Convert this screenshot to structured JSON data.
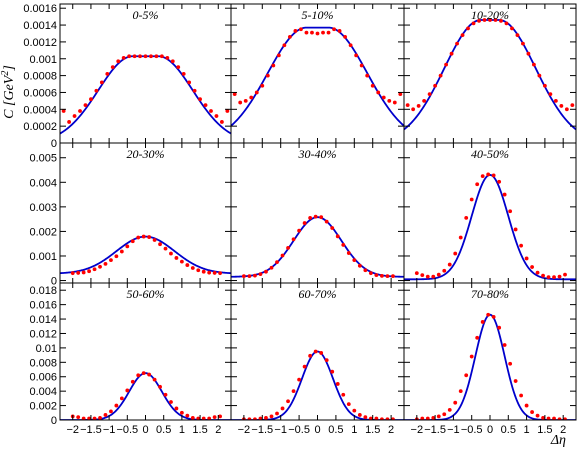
{
  "chart_data": {
    "type": "scatter",
    "ylabel": "C [GeV",
    "ylabel_sup": "2",
    "ylabel_close": "]",
    "xlabel": "Δη",
    "colors": {
      "data": "#ff0000",
      "model": "#0000cc",
      "frame": "#000000"
    },
    "xlim": [
      -2.35,
      2.35
    ],
    "x_ticks": [
      -2,
      -1.5,
      -1,
      -0.5,
      0,
      0.5,
      1,
      1.5,
      2
    ],
    "x_tick_labels": [
      "−2",
      "−1.5",
      "−1",
      "−0.5",
      "0",
      "0.5",
      "1",
      "1.5",
      "2"
    ],
    "rows": [
      {
        "ylim": [
          0,
          0.00165
        ],
        "y_ticks": [
          0,
          0.0002,
          0.0004,
          0.0006,
          0.0008,
          0.001,
          0.0012,
          0.0014,
          0.0016
        ],
        "y_tick_labels": [
          "0",
          "0.0002",
          "0.0004",
          "0.0006",
          "0.0008",
          "0.001",
          "0.0012",
          "0.0014",
          "0.0016"
        ]
      },
      {
        "ylim": [
          -0.0001,
          0.0056
        ],
        "y_ticks": [
          0,
          0.001,
          0.002,
          0.003,
          0.004,
          0.005
        ],
        "y_tick_labels": [
          "0",
          "0.001",
          "0.002",
          "0.003",
          "0.004",
          "0.005"
        ]
      },
      {
        "ylim": [
          0,
          0.019
        ],
        "y_ticks": [
          0,
          0.002,
          0.004,
          0.006,
          0.008,
          0.01,
          0.012,
          0.014,
          0.016,
          0.018
        ],
        "y_tick_labels": [
          "0",
          "0.002",
          "0.004",
          "0.006",
          "0.008",
          "0.01",
          "0.012",
          "0.014",
          "0.016",
          "0.018"
        ]
      }
    ],
    "panels": [
      {
        "label": "0-5%",
        "row": 0,
        "col": 0,
        "base": 0.0,
        "amp": 0.00103,
        "width": 0.95,
        "flat": 0.35,
        "data_x": [
          -2.25,
          -2.1,
          -1.95,
          -1.8,
          -1.65,
          -1.5,
          -1.35,
          -1.2,
          -1.05,
          -0.9,
          -0.75,
          -0.6,
          -0.45,
          -0.3,
          -0.15,
          0,
          0.15,
          0.3,
          0.45,
          0.6,
          0.75,
          0.9,
          1.05,
          1.2,
          1.35,
          1.5,
          1.65,
          1.8,
          1.95,
          2.1,
          2.25
        ],
        "data_y": [
          0.00038,
          0.00025,
          0.00032,
          0.00038,
          0.00045,
          0.00052,
          0.00062,
          0.00072,
          0.00082,
          0.0009,
          0.00097,
          0.00101,
          0.00103,
          0.00103,
          0.00103,
          0.00103,
          0.00103,
          0.00103,
          0.00103,
          0.00101,
          0.00097,
          0.0009,
          0.00082,
          0.00072,
          0.00062,
          0.00052,
          0.00045,
          0.00038,
          0.00032,
          0.00025,
          0.00038
        ]
      },
      {
        "label": "5-10%",
        "row": 0,
        "col": 1,
        "base": 0.0,
        "amp": 0.00137,
        "width": 1.05,
        "flat": 0.3,
        "data_x": [
          -2.25,
          -2.1,
          -1.95,
          -1.8,
          -1.65,
          -1.5,
          -1.35,
          -1.2,
          -1.05,
          -0.9,
          -0.75,
          -0.6,
          -0.45,
          -0.3,
          -0.15,
          0,
          0.15,
          0.3,
          0.45,
          0.6,
          0.75,
          0.9,
          1.05,
          1.2,
          1.35,
          1.5,
          1.65,
          1.8,
          1.95,
          2.1,
          2.25
        ],
        "data_y": [
          0.00058,
          0.00048,
          0.0005,
          0.00054,
          0.0006,
          0.00068,
          0.0008,
          0.00092,
          0.00104,
          0.00116,
          0.00126,
          0.00133,
          0.00135,
          0.00131,
          0.00131,
          0.0013,
          0.00131,
          0.00131,
          0.00135,
          0.00133,
          0.00126,
          0.00116,
          0.00104,
          0.00092,
          0.0008,
          0.00068,
          0.0006,
          0.00054,
          0.0005,
          0.00048,
          0.00058
        ]
      },
      {
        "label": "10-20%",
        "row": 0,
        "col": 2,
        "base": 0.0,
        "amp": 0.00146,
        "width": 1.0,
        "flat": 0.25,
        "data_x": [
          -2.25,
          -2.1,
          -1.95,
          -1.8,
          -1.65,
          -1.5,
          -1.35,
          -1.2,
          -1.05,
          -0.9,
          -0.75,
          -0.6,
          -0.45,
          -0.3,
          -0.15,
          0,
          0.15,
          0.3,
          0.45,
          0.6,
          0.75,
          0.9,
          1.05,
          1.2,
          1.35,
          1.5,
          1.65,
          1.8,
          1.95,
          2.1,
          2.25
        ],
        "data_y": [
          0.00045,
          0.0004,
          0.00044,
          0.0005,
          0.00058,
          0.00068,
          0.0008,
          0.00093,
          0.00106,
          0.00118,
          0.00128,
          0.00136,
          0.00142,
          0.00145,
          0.00146,
          0.00146,
          0.00146,
          0.00145,
          0.00142,
          0.00136,
          0.00128,
          0.00118,
          0.00106,
          0.00093,
          0.0008,
          0.00068,
          0.00058,
          0.0005,
          0.00044,
          0.0004,
          0.00045
        ]
      },
      {
        "label": "20-30%",
        "row": 1,
        "col": 0,
        "base": 0.00028,
        "amp": 0.00151,
        "width": 0.8,
        "flat": 0.0,
        "data_x": [
          -2.0,
          -1.85,
          -1.7,
          -1.55,
          -1.4,
          -1.25,
          -1.1,
          -0.95,
          -0.8,
          -0.65,
          -0.5,
          -0.35,
          -0.2,
          -0.05,
          0.1,
          0.25,
          0.4,
          0.55,
          0.7,
          0.85,
          1.0,
          1.15,
          1.3,
          1.45,
          1.6,
          1.75,
          1.9,
          2.05
        ],
        "data_y": [
          0.0003,
          0.00031,
          0.00033,
          0.00038,
          0.00046,
          0.00056,
          0.00068,
          0.00083,
          0.00099,
          0.00118,
          0.00139,
          0.0016,
          0.00175,
          0.00179,
          0.00177,
          0.00165,
          0.00148,
          0.0013,
          0.0011,
          0.00092,
          0.00077,
          0.00063,
          0.00051,
          0.00042,
          0.00036,
          0.00032,
          0.00031,
          0.0003
        ]
      },
      {
        "label": "30-40%",
        "row": 1,
        "col": 1,
        "base": 0.00015,
        "amp": 0.00243,
        "width": 0.65,
        "flat": 0.0,
        "data_x": [
          -2.0,
          -1.85,
          -1.7,
          -1.55,
          -1.4,
          -1.25,
          -1.1,
          -0.95,
          -0.8,
          -0.65,
          -0.5,
          -0.35,
          -0.2,
          -0.05,
          0.1,
          0.25,
          0.4,
          0.55,
          0.7,
          0.85,
          1.0,
          1.15,
          1.3,
          1.45,
          1.6,
          1.75,
          1.9,
          2.05
        ],
        "data_y": [
          0.00018,
          0.00018,
          0.0002,
          0.00026,
          0.00036,
          0.00052,
          0.00075,
          0.00102,
          0.00133,
          0.00168,
          0.00203,
          0.00234,
          0.00255,
          0.0026,
          0.00258,
          0.0024,
          0.00214,
          0.0018,
          0.00145,
          0.00112,
          0.00083,
          0.0006,
          0.00042,
          0.0003,
          0.00022,
          0.00019,
          0.00018,
          0.00018
        ]
      },
      {
        "label": "40-50%",
        "row": 1,
        "col": 2,
        "base": 5e-05,
        "amp": 0.00425,
        "width": 0.5,
        "flat": 0.0,
        "data_x": [
          -2.0,
          -1.85,
          -1.7,
          -1.55,
          -1.4,
          -1.25,
          -1.1,
          -0.95,
          -0.8,
          -0.65,
          -0.5,
          -0.35,
          -0.2,
          -0.05,
          0.1,
          0.25,
          0.4,
          0.55,
          0.7,
          0.85,
          1.0,
          1.15,
          1.3,
          1.45,
          1.6,
          1.75,
          1.9,
          2.05
        ],
        "data_y": [
          0.0003,
          0.00022,
          0.00016,
          0.00016,
          0.00024,
          0.0004,
          0.00065,
          0.0011,
          0.00175,
          0.00255,
          0.0033,
          0.00392,
          0.00425,
          0.00432,
          0.00428,
          0.00402,
          0.0035,
          0.00282,
          0.00208,
          0.00142,
          0.0009,
          0.00055,
          0.00032,
          0.0002,
          0.00014,
          0.00014,
          0.00016,
          0.00024
        ]
      },
      {
        "label": "50-60%",
        "row": 2,
        "col": 0,
        "base": 0.0,
        "amp": 0.0065,
        "width": 0.45,
        "flat": 0.0,
        "data_x": [
          -2.0,
          -1.85,
          -1.7,
          -1.55,
          -1.4,
          -1.25,
          -1.1,
          -0.95,
          -0.8,
          -0.65,
          -0.5,
          -0.35,
          -0.2,
          -0.05,
          0.1,
          0.25,
          0.4,
          0.55,
          0.7,
          0.85,
          1.0,
          1.15,
          1.3,
          1.45,
          1.6,
          1.75,
          1.9,
          2.05
        ],
        "data_y": [
          0.0005,
          0.0004,
          0.0002,
          0.0002,
          0.0002,
          0.0003,
          0.0007,
          0.0012,
          0.002,
          0.003,
          0.0041,
          0.0053,
          0.0062,
          0.0065,
          0.0063,
          0.0056,
          0.0046,
          0.0035,
          0.0025,
          0.0016,
          0.001,
          0.0006,
          0.0003,
          0.0002,
          0.0002,
          0.0002,
          0.0004,
          0.0005
        ]
      },
      {
        "label": "60-70%",
        "row": 2,
        "col": 1,
        "base": 0.0,
        "amp": 0.0095,
        "width": 0.42,
        "flat": 0.0,
        "data_x": [
          -2.0,
          -1.85,
          -1.7,
          -1.55,
          -1.4,
          -1.25,
          -1.1,
          -0.95,
          -0.8,
          -0.65,
          -0.5,
          -0.35,
          -0.2,
          -0.05,
          0.1,
          0.25,
          0.4,
          0.55,
          0.7,
          0.85,
          1.0,
          1.15,
          1.3,
          1.45,
          1.6,
          1.75,
          1.9,
          2.05
        ],
        "data_y": [
          0.0001,
          0.0001,
          0.0001,
          0.0002,
          0.0003,
          0.0005,
          0.0009,
          0.0016,
          0.0026,
          0.004,
          0.0056,
          0.0074,
          0.0089,
          0.0095,
          0.0093,
          0.0083,
          0.0067,
          0.005,
          0.0035,
          0.0022,
          0.0013,
          0.0007,
          0.0004,
          0.0002,
          0.0002,
          0.0001,
          0.0001,
          0.0001
        ]
      },
      {
        "label": "70-80%",
        "row": 2,
        "col": 2,
        "base": 0.0,
        "amp": 0.0146,
        "width": 0.4,
        "flat": 0.0,
        "data_x": [
          -2.0,
          -1.85,
          -1.7,
          -1.55,
          -1.4,
          -1.25,
          -1.1,
          -0.95,
          -0.8,
          -0.65,
          -0.5,
          -0.35,
          -0.2,
          -0.05,
          0.1,
          0.25,
          0.4,
          0.55,
          0.7,
          0.85,
          1.0,
          1.15,
          1.3,
          1.45,
          1.6,
          1.75,
          1.9,
          2.05
        ],
        "data_y": [
          0.0001,
          0.0002,
          0.0002,
          0.0003,
          0.0005,
          0.0008,
          0.0014,
          0.0024,
          0.004,
          0.0062,
          0.0088,
          0.0114,
          0.0136,
          0.0146,
          0.0143,
          0.0128,
          0.0104,
          0.0078,
          0.0054,
          0.0034,
          0.002,
          0.0011,
          0.0006,
          0.0003,
          0.0002,
          0.0002,
          0.0001,
          0.0001
        ]
      }
    ]
  }
}
